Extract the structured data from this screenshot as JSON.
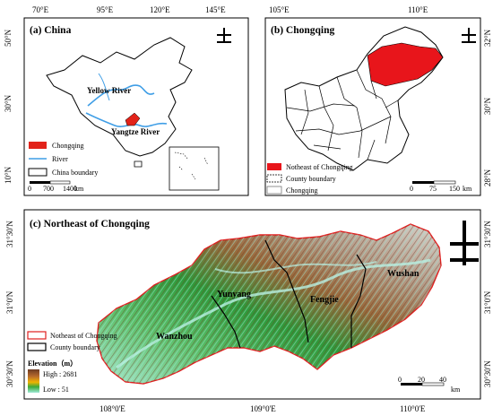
{
  "panel_a": {
    "title": "(a) China",
    "lon_ticks": [
      "70°E",
      "95°E",
      "120°E",
      "145°E"
    ],
    "lat_ticks": [
      "50°N",
      "30°N",
      "10°N"
    ],
    "labels": {
      "yellow_river": "Yellow River",
      "yangtze_river": "Yangtze River"
    },
    "legend": [
      "Chongqing",
      "River",
      "China boundary"
    ],
    "scale": {
      "ticks": [
        "0",
        "700",
        "1400"
      ],
      "unit": "km"
    },
    "colors": {
      "river": "#3f9ee6",
      "highlight": "#e2231a"
    }
  },
  "panel_b": {
    "title": "(b) Chongqing",
    "lon_ticks": [
      "105°E",
      "110°E"
    ],
    "lat_ticks": [
      "32°N",
      "30°N",
      "28°N"
    ],
    "legend": [
      "Notheast of Chongqing",
      "County boundary",
      "Chongqing"
    ],
    "scale": {
      "ticks": [
        "0",
        "75",
        "150"
      ],
      "unit": "km"
    }
  },
  "panel_c": {
    "title": "(c) Northeast of Chongqing",
    "lon_ticks": [
      "108°0'E",
      "109°0'E",
      "110°0'E"
    ],
    "lat_ticks": [
      "31°30'N",
      "31°0'N",
      "30°30'N"
    ],
    "cities": [
      "Yunyang",
      "Fengjie",
      "Wushan",
      "Wanzhou"
    ],
    "legend": [
      "Notheast of Chongqing",
      "County boundary"
    ],
    "elevation_title": "Elevation（m）",
    "elevation_high": "High : 2681",
    "elevation_low": "Low : 51",
    "scale": {
      "ticks": [
        "0",
        "20",
        "40"
      ],
      "unit": "km"
    }
  }
}
